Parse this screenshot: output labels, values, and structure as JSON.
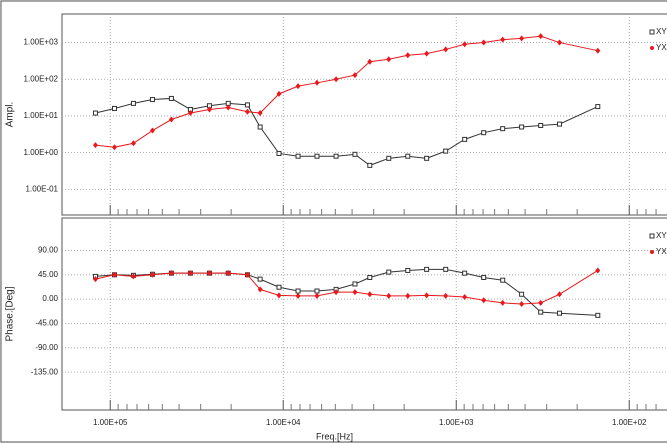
{
  "chart_data": [
    {
      "type": "line",
      "ylabel": "Ampl.",
      "xlog": true,
      "ylog": true,
      "grid": true,
      "xlim": [
        190000,
        39
      ],
      "xticks": [
        100000,
        10000,
        1000,
        100
      ],
      "ylim": [
        0.02,
        6000
      ],
      "yticks": [
        {
          "value": 1000,
          "label": "1.00E+03"
        },
        {
          "value": 100,
          "label": "1.00E+02"
        },
        {
          "value": 10,
          "label": "1.00E+01"
        },
        {
          "value": 1,
          "label": "1.00E+00"
        },
        {
          "value": 0.1,
          "label": "1.00E-01"
        }
      ],
      "x": [
        121700,
        94500,
        73400,
        57000,
        44300,
        34400,
        26700,
        20800,
        16100,
        13600,
        10580,
        8210,
        6380,
        4950,
        3850,
        3160,
        2455,
        1906,
        1483,
        1151,
        894,
        694,
        539,
        419,
        325,
        253,
        152
      ],
      "series": [
        {
          "name": "XY",
          "color": "#333333",
          "marker": "square",
          "values": [
            12,
            16,
            22,
            28,
            30,
            15,
            19,
            22,
            20,
            5,
            0.95,
            0.8,
            0.8,
            0.8,
            0.9,
            0.45,
            0.7,
            0.8,
            0.7,
            1.1,
            2.3,
            3.5,
            4.5,
            5,
            5.5,
            6,
            18
          ]
        },
        {
          "name": "YX",
          "color": "#e8191c",
          "marker": "diamond",
          "values": [
            1.6,
            1.4,
            1.8,
            4,
            8,
            12,
            15,
            17,
            13,
            12,
            40,
            65,
            80,
            100,
            130,
            300,
            350,
            450,
            500,
            650,
            900,
            1000,
            1200,
            1300,
            1500,
            1000,
            600
          ]
        }
      ]
    },
    {
      "type": "line",
      "ylabel": "Phase.[Deg]",
      "xlabel": "Freq.[Hz]",
      "xlog": true,
      "ylog": false,
      "grid": true,
      "xlim": [
        190000,
        39
      ],
      "xticks": [
        {
          "value": 100000,
          "label": "1.00E+05"
        },
        {
          "value": 10000,
          "label": "1.00E+04"
        },
        {
          "value": 1000,
          "label": "1.00E+03"
        },
        {
          "value": 100,
          "label": "1.00E+02"
        }
      ],
      "ylim": [
        -205,
        150
      ],
      "yticks": [
        {
          "value": 90,
          "label": "90.00"
        },
        {
          "value": 45,
          "label": "45.00"
        },
        {
          "value": 0,
          "label": "0.00"
        },
        {
          "value": -45,
          "label": "-45.00"
        },
        {
          "value": -90,
          "label": "-90.00"
        },
        {
          "value": -135,
          "label": "-135.00"
        }
      ],
      "x": [
        121700,
        94500,
        73400,
        57000,
        44300,
        34400,
        26700,
        20800,
        16100,
        13600,
        10580,
        8210,
        6380,
        4950,
        3850,
        3160,
        2455,
        1906,
        1483,
        1151,
        894,
        694,
        539,
        419,
        325,
        253,
        152
      ],
      "series": [
        {
          "name": "XY",
          "color": "#333333",
          "marker": "square",
          "values": [
            42,
            45,
            44,
            46,
            48,
            48,
            48,
            48,
            45,
            37,
            22,
            15,
            15,
            18,
            28,
            40,
            50,
            53,
            55,
            55,
            48,
            40,
            35,
            9,
            -24,
            -26,
            -30
          ]
        },
        {
          "name": "YX",
          "color": "#e8191c",
          "marker": "diamond",
          "values": [
            37,
            45,
            42,
            45,
            48,
            48,
            48,
            48,
            45,
            18,
            7,
            6,
            6,
            13,
            13,
            9,
            6,
            6,
            7,
            6,
            4,
            -2,
            -7,
            -9,
            -7,
            9,
            53
          ]
        }
      ]
    }
  ]
}
